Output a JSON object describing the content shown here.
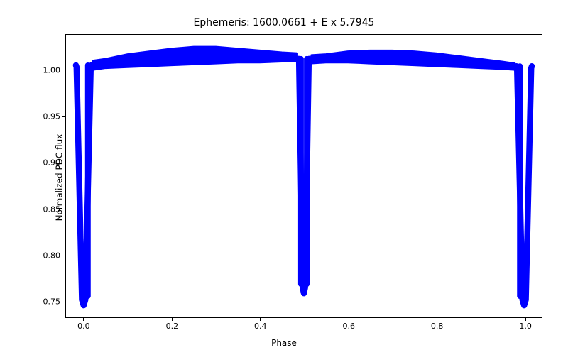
{
  "chart": {
    "type": "scatter-line",
    "title": "Ephemeris: 1600.0661 + E x 5.7945",
    "title_fontsize": 14,
    "xlabel": "Phase",
    "ylabel": "Normalized PDC flux",
    "label_fontsize": 12,
    "tick_fontsize": 11,
    "xlim": [
      -0.04,
      1.04
    ],
    "ylim": [
      0.732,
      1.038
    ],
    "xticks": [
      0.0,
      0.2,
      0.4,
      0.6,
      0.8,
      1.0
    ],
    "xtick_labels": [
      "0.0",
      "0.2",
      "0.4",
      "0.6",
      "0.8",
      "1.0"
    ],
    "yticks": [
      0.75,
      0.8,
      0.85,
      0.9,
      0.95,
      1.0
    ],
    "ytick_labels": [
      "0.75",
      "0.80",
      "0.85",
      "0.90",
      "0.95",
      "1.00"
    ],
    "background_color": "#ffffff",
    "border_color": "#000000",
    "series_color": "#0000ff",
    "line_width": 2.5,
    "light_curve": {
      "primary_eclipse_depth": 0.745,
      "secondary_eclipse_depth": 0.758,
      "out_of_eclipse_max": 1.025,
      "out_of_eclipse_min": 1.0,
      "primary_phase": 0.0,
      "secondary_phase": 0.5,
      "primary_width": 0.035,
      "secondary_width": 0.024,
      "band_upper": [
        {
          "x": 0.021,
          "y": 1.01
        },
        {
          "x": 0.05,
          "y": 1.012
        },
        {
          "x": 0.1,
          "y": 1.017
        },
        {
          "x": 0.15,
          "y": 1.02
        },
        {
          "x": 0.2,
          "y": 1.023
        },
        {
          "x": 0.25,
          "y": 1.025
        },
        {
          "x": 0.3,
          "y": 1.025
        },
        {
          "x": 0.35,
          "y": 1.023
        },
        {
          "x": 0.4,
          "y": 1.021
        },
        {
          "x": 0.45,
          "y": 1.019
        },
        {
          "x": 0.485,
          "y": 1.018
        },
        {
          "x": 0.517,
          "y": 1.016
        },
        {
          "x": 0.55,
          "y": 1.017
        },
        {
          "x": 0.6,
          "y": 1.02
        },
        {
          "x": 0.65,
          "y": 1.021
        },
        {
          "x": 0.7,
          "y": 1.021
        },
        {
          "x": 0.75,
          "y": 1.02
        },
        {
          "x": 0.8,
          "y": 1.018
        },
        {
          "x": 0.85,
          "y": 1.015
        },
        {
          "x": 0.9,
          "y": 1.012
        },
        {
          "x": 0.95,
          "y": 1.009
        },
        {
          "x": 0.979,
          "y": 1.007
        }
      ],
      "band_lower": [
        {
          "x": 0.021,
          "y": 1.0
        },
        {
          "x": 0.05,
          "y": 1.002
        },
        {
          "x": 0.1,
          "y": 1.003
        },
        {
          "x": 0.15,
          "y": 1.004
        },
        {
          "x": 0.2,
          "y": 1.005
        },
        {
          "x": 0.25,
          "y": 1.006
        },
        {
          "x": 0.3,
          "y": 1.007
        },
        {
          "x": 0.35,
          "y": 1.008
        },
        {
          "x": 0.4,
          "y": 1.008
        },
        {
          "x": 0.45,
          "y": 1.009
        },
        {
          "x": 0.485,
          "y": 1.009
        },
        {
          "x": 0.517,
          "y": 1.007
        },
        {
          "x": 0.55,
          "y": 1.008
        },
        {
          "x": 0.6,
          "y": 1.008
        },
        {
          "x": 0.65,
          "y": 1.007
        },
        {
          "x": 0.7,
          "y": 1.006
        },
        {
          "x": 0.75,
          "y": 1.005
        },
        {
          "x": 0.8,
          "y": 1.004
        },
        {
          "x": 0.85,
          "y": 1.003
        },
        {
          "x": 0.9,
          "y": 1.002
        },
        {
          "x": 0.95,
          "y": 1.001
        },
        {
          "x": 0.979,
          "y": 1.0
        }
      ],
      "mid_strand": [
        {
          "x": 0.021,
          "y": 1.005
        },
        {
          "x": 0.1,
          "y": 1.015
        },
        {
          "x": 0.2,
          "y": 1.018
        },
        {
          "x": 0.3,
          "y": 1.012
        },
        {
          "x": 0.4,
          "y": 1.009
        },
        {
          "x": 0.485,
          "y": 1.01
        }
      ]
    }
  }
}
